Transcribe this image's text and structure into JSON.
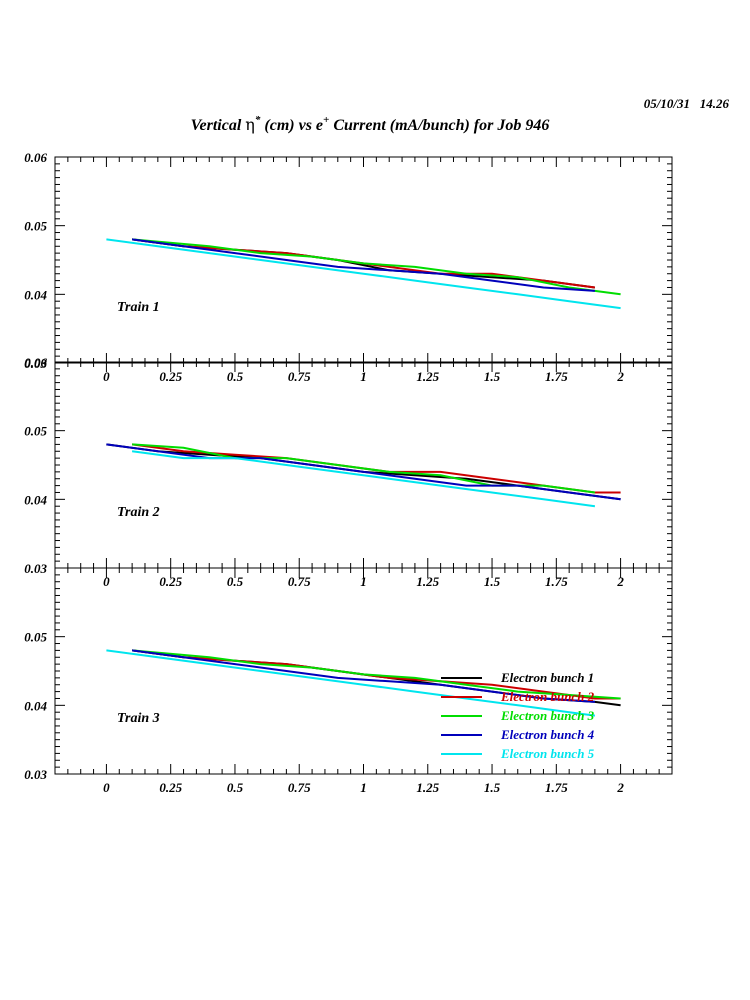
{
  "stamp": "05/10/31   14.26",
  "title": {
    "part1": "Vertical ",
    "eta": "η",
    "sup_star": "*",
    "part2": " (cm) vs e",
    "sup_plus": "+",
    "part3": " Current (mA/bunch) for Job 946"
  },
  "legend_placement": "bottom-right of Train 3 panel",
  "colors": {
    "Electron bunch 1": "#000000",
    "Electron bunch 2": "#cc0000",
    "Electron bunch 3": "#00dd00",
    "Electron bunch 4": "#0000bb",
    "Electron bunch 5": "#00e5ee"
  },
  "chart_data": [
    {
      "type": "line",
      "panel_label": "Train 1",
      "xlim": [
        -0.2,
        2.2
      ],
      "ylim": [
        0.03,
        0.06
      ],
      "x_ticks": [
        "0",
        "0.25",
        "0.5",
        "0.75",
        "1",
        "1.25",
        "1.5",
        "1.75",
        "2"
      ],
      "y_ticks": [
        "0.04",
        "0.05",
        "0.06"
      ],
      "bottom_tick_label": "0.03",
      "grid": false,
      "series": [
        {
          "name": "Electron bunch 1",
          "x": [
            0.1,
            0.3,
            0.5,
            0.7,
            0.9,
            1.1,
            1.3,
            1.5,
            1.7,
            1.9
          ],
          "y": [
            0.048,
            0.047,
            0.0465,
            0.046,
            0.045,
            0.0435,
            0.043,
            0.0425,
            0.042,
            0.041
          ]
        },
        {
          "name": "Electron bunch 2",
          "x": [
            0.1,
            0.3,
            0.5,
            0.7,
            0.9,
            1.1,
            1.3,
            1.5,
            1.7,
            1.9
          ],
          "y": [
            0.048,
            0.047,
            0.0465,
            0.046,
            0.045,
            0.044,
            0.043,
            0.043,
            0.042,
            0.041
          ]
        },
        {
          "name": "Electron bunch 3",
          "x": [
            0.1,
            0.4,
            0.6,
            0.8,
            1.0,
            1.2,
            1.4,
            1.6,
            1.8,
            2.0
          ],
          "y": [
            0.048,
            0.047,
            0.046,
            0.0455,
            0.0445,
            0.044,
            0.043,
            0.0425,
            0.041,
            0.04
          ]
        },
        {
          "name": "Electron bunch 4",
          "x": [
            0.1,
            0.3,
            0.5,
            0.7,
            0.9,
            1.1,
            1.3,
            1.5,
            1.7,
            1.9
          ],
          "y": [
            0.048,
            0.047,
            0.046,
            0.045,
            0.044,
            0.0435,
            0.043,
            0.042,
            0.041,
            0.0405
          ]
        },
        {
          "name": "Electron bunch 5",
          "x": [
            0.0,
            0.2,
            0.4,
            0.6,
            0.8,
            1.0,
            1.2,
            1.4,
            1.6,
            1.8,
            2.0
          ],
          "y": [
            0.048,
            0.047,
            0.046,
            0.045,
            0.044,
            0.043,
            0.042,
            0.041,
            0.04,
            0.039,
            0.038
          ]
        }
      ]
    },
    {
      "type": "line",
      "panel_label": "Train 2",
      "xlim": [
        -0.2,
        2.2
      ],
      "ylim": [
        0.03,
        0.06
      ],
      "x_ticks": [
        "0",
        "0.25",
        "0.5",
        "0.75",
        "1",
        "1.25",
        "1.5",
        "1.75",
        "2"
      ],
      "y_ticks": [
        "0.04",
        "0.05",
        "0.06"
      ],
      "bottom_tick_label": "0.03",
      "grid": false,
      "series": [
        {
          "name": "Electron bunch 1",
          "x": [
            0.0,
            0.2,
            0.4,
            0.6,
            0.8,
            1.0,
            1.2,
            1.4,
            1.6,
            1.8,
            2.0
          ],
          "y": [
            0.048,
            0.047,
            0.0465,
            0.046,
            0.045,
            0.044,
            0.0435,
            0.043,
            0.042,
            0.041,
            0.04
          ]
        },
        {
          "name": "Electron bunch 2",
          "x": [
            0.1,
            0.3,
            0.5,
            0.7,
            0.9,
            1.1,
            1.3,
            1.5,
            1.7,
            1.9,
            2.0
          ],
          "y": [
            0.048,
            0.047,
            0.0465,
            0.046,
            0.045,
            0.044,
            0.044,
            0.043,
            0.042,
            0.041,
            0.041
          ]
        },
        {
          "name": "Electron bunch 3",
          "x": [
            0.1,
            0.3,
            0.5,
            0.7,
            0.9,
            1.1,
            1.3,
            1.5,
            1.7,
            1.9
          ],
          "y": [
            0.048,
            0.0475,
            0.046,
            0.046,
            0.045,
            0.044,
            0.0435,
            0.042,
            0.042,
            0.041
          ]
        },
        {
          "name": "Electron bunch 4",
          "x": [
            0.0,
            0.2,
            0.4,
            0.6,
            0.8,
            1.0,
            1.2,
            1.4,
            1.6,
            1.8,
            2.0
          ],
          "y": [
            0.048,
            0.047,
            0.046,
            0.046,
            0.045,
            0.044,
            0.043,
            0.042,
            0.042,
            0.041,
            0.04
          ]
        },
        {
          "name": "Electron bunch 5",
          "x": [
            0.1,
            0.3,
            0.5,
            0.7,
            0.9,
            1.1,
            1.3,
            1.5,
            1.7,
            1.9
          ],
          "y": [
            0.047,
            0.046,
            0.046,
            0.045,
            0.044,
            0.043,
            0.042,
            0.041,
            0.04,
            0.039
          ]
        }
      ]
    },
    {
      "type": "line",
      "panel_label": "Train 3",
      "xlim": [
        -0.2,
        2.2
      ],
      "ylim": [
        0.03,
        0.06
      ],
      "x_ticks": [
        "0",
        "0.25",
        "0.5",
        "0.75",
        "1",
        "1.25",
        "1.5",
        "1.75",
        "2"
      ],
      "y_ticks": [
        "0.03",
        "0.04",
        "0.05"
      ],
      "grid": false,
      "series": [
        {
          "name": "Electron bunch 1",
          "x": [
            0.1,
            0.3,
            0.5,
            0.7,
            0.9,
            1.1,
            1.3,
            1.5,
            1.7,
            1.9,
            2.0
          ],
          "y": [
            0.048,
            0.047,
            0.0465,
            0.046,
            0.045,
            0.044,
            0.043,
            0.042,
            0.041,
            0.0405,
            0.04
          ]
        },
        {
          "name": "Electron bunch 2",
          "x": [
            0.1,
            0.3,
            0.5,
            0.7,
            0.9,
            1.1,
            1.3,
            1.5,
            1.7,
            1.9,
            2.0
          ],
          "y": [
            0.048,
            0.047,
            0.0465,
            0.046,
            0.045,
            0.044,
            0.0435,
            0.043,
            0.042,
            0.041,
            0.041
          ]
        },
        {
          "name": "Electron bunch 3",
          "x": [
            0.1,
            0.4,
            0.6,
            0.8,
            1.0,
            1.2,
            1.4,
            1.6,
            1.8,
            2.0
          ],
          "y": [
            0.048,
            0.047,
            0.046,
            0.0455,
            0.0445,
            0.044,
            0.043,
            0.042,
            0.0415,
            0.041
          ]
        },
        {
          "name": "Electron bunch 4",
          "x": [
            0.1,
            0.3,
            0.5,
            0.7,
            0.9,
            1.1,
            1.3,
            1.5,
            1.7,
            1.9
          ],
          "y": [
            0.048,
            0.047,
            0.046,
            0.045,
            0.044,
            0.0435,
            0.043,
            0.042,
            0.041,
            0.0405
          ]
        },
        {
          "name": "Electron bunch 5",
          "x": [
            0.0,
            0.2,
            0.4,
            0.6,
            0.8,
            1.0,
            1.2,
            1.4,
            1.6,
            1.8,
            1.9
          ],
          "y": [
            0.048,
            0.047,
            0.046,
            0.045,
            0.044,
            0.043,
            0.042,
            0.041,
            0.04,
            0.039,
            0.0385
          ]
        }
      ]
    }
  ]
}
